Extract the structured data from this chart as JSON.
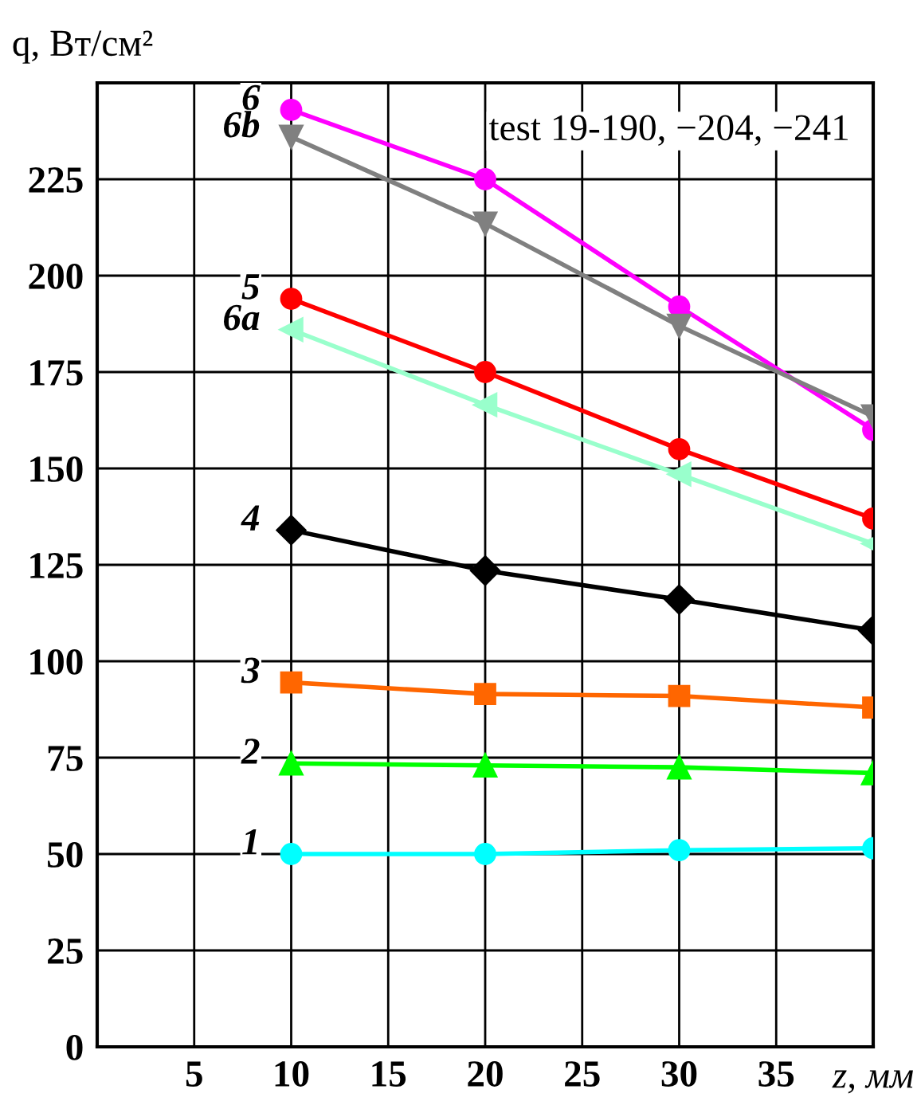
{
  "chart_data": {
    "type": "line",
    "xlabel": "z, мм",
    "ylabel": "q, Вт/см²",
    "x": [
      10,
      20,
      30,
      40
    ],
    "xlim": [
      0,
      40
    ],
    "ylim": [
      0,
      250
    ],
    "xticks": [
      {
        "value": 0,
        "label": null
      },
      5,
      10,
      15,
      20,
      25,
      30,
      35,
      {
        "value": 40,
        "label": null
      }
    ],
    "yticks": [
      0,
      25,
      50,
      75,
      100,
      125,
      150,
      175,
      200,
      225,
      {
        "value": 250,
        "label": null
      }
    ],
    "grid": true,
    "legend": false,
    "line_style": "solid",
    "annotations": [
      "test 19-190, −204, −241"
    ],
    "series": [
      {
        "name": "6",
        "color": "#ff00ff",
        "marker": "circle",
        "values": [
          243,
          225,
          192,
          160
        ]
      },
      {
        "name": "6b",
        "color": "#808080",
        "marker": "triangle_down",
        "values": [
          236,
          213.5,
          187,
          163.5
        ]
      },
      {
        "name": "5",
        "color": "#ff0000",
        "marker": "circle",
        "values": [
          194,
          175,
          155,
          137
        ]
      },
      {
        "name": "6a",
        "color": "#99ffcc",
        "marker": "triangle_left",
        "values": [
          186,
          166.5,
          148.5,
          130.5
        ]
      },
      {
        "name": "4",
        "color": "#000000",
        "marker": "diamond",
        "values": [
          134,
          123.5,
          116,
          108
        ]
      },
      {
        "name": "3",
        "color": "#ff6600",
        "marker": "square",
        "values": [
          94.5,
          91.5,
          91,
          88
        ]
      },
      {
        "name": "2",
        "color": "#00ff00",
        "marker": "triangle",
        "values": [
          73.5,
          73,
          72.5,
          71
        ]
      },
      {
        "name": "1",
        "color": "#00ffff",
        "marker": "circle",
        "values": [
          50,
          50,
          51,
          51.5
        ]
      }
    ]
  }
}
